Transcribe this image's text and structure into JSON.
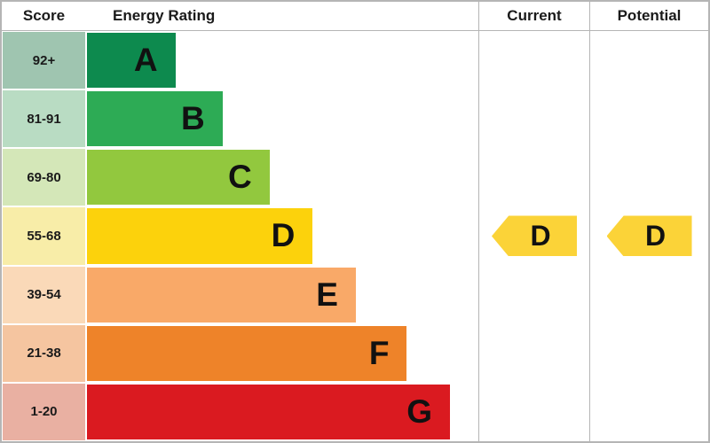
{
  "header": {
    "score": "Score",
    "rating": "Energy Rating",
    "current": "Current",
    "potential": "Potential"
  },
  "accent": {
    "arrow_color": "#fbd338",
    "border_color": "#b5b5b5"
  },
  "bands": [
    {
      "letter": "A",
      "score": "92+",
      "bar_color": "#0d8a4e",
      "tint_color": "#9fc5b0",
      "width_pct": 23
    },
    {
      "letter": "B",
      "score": "81-91",
      "bar_color": "#2dab55",
      "tint_color": "#b9dcc3",
      "width_pct": 35
    },
    {
      "letter": "C",
      "score": "69-80",
      "bar_color": "#92c83e",
      "tint_color": "#d4e7b8",
      "width_pct": 47
    },
    {
      "letter": "D",
      "score": "55-68",
      "bar_color": "#fcd20c",
      "tint_color": "#f8eda8",
      "width_pct": 58
    },
    {
      "letter": "E",
      "score": "39-54",
      "bar_color": "#f9a968",
      "tint_color": "#fad9b8",
      "width_pct": 69
    },
    {
      "letter": "F",
      "score": "21-38",
      "bar_color": "#ee8329",
      "tint_color": "#f5c5a0",
      "width_pct": 82
    },
    {
      "letter": "G",
      "score": "1-20",
      "bar_color": "#da1a20",
      "tint_color": "#e9b0a2",
      "width_pct": 93
    }
  ],
  "current": {
    "letter": "D",
    "band_index": 3
  },
  "potential": {
    "letter": "D",
    "band_index": 3
  },
  "chart_data": {
    "type": "bar",
    "title": "Energy Rating",
    "categories": [
      "A",
      "B",
      "C",
      "D",
      "E",
      "F",
      "G"
    ],
    "score_ranges": [
      "92+",
      "81-91",
      "69-80",
      "55-68",
      "39-54",
      "21-38",
      "1-20"
    ],
    "bar_widths_pct": [
      23,
      35,
      47,
      58,
      69,
      82,
      93
    ],
    "current_rating": "D",
    "potential_rating": "D",
    "legend_position": "none",
    "grid": false
  }
}
